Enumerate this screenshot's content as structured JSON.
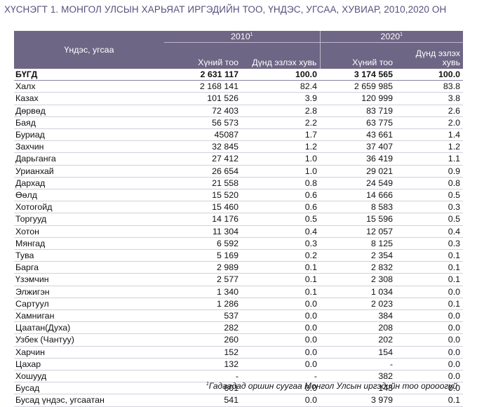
{
  "title": "ХҮСНЭГТ 1. МОНГОЛ УЛСЫН ХАРЬЯАТ ИРГЭДИЙН ТОО, ҮНДЭС, УГСАА, ХУВИАР, 2010,2020 ОН",
  "header": {
    "row_label": "Үндэс, угсаа",
    "year_2010": "2010",
    "year_2020": "2020",
    "sup": "1",
    "col_count": "Хүний тоо",
    "col_share": "Дүнд эзлэх хувь"
  },
  "rows": [
    {
      "name": "БҮГД",
      "p2010": "2 631 117",
      "s2010": "100.0",
      "p2020": "3 174 565",
      "s2020": "100.0"
    },
    {
      "name": "Халх",
      "p2010": "2 168 141",
      "s2010": "82.4",
      "p2020": "2 659 985",
      "s2020": "83.8"
    },
    {
      "name": "Казах",
      "p2010": "101 526",
      "s2010": "3.9",
      "p2020": "120 999",
      "s2020": "3.8"
    },
    {
      "name": "Дөрвөд",
      "p2010": "72 403",
      "s2010": "2.8",
      "p2020": "83 719",
      "s2020": "2.6"
    },
    {
      "name": "Баяд",
      "p2010": "56 573",
      "s2010": "2.2",
      "p2020": "63 775",
      "s2020": "2.0"
    },
    {
      "name": "Буриад",
      "p2010": "45087",
      "s2010": "1.7",
      "p2020": "43 661",
      "s2020": "1.4"
    },
    {
      "name": "Захчин",
      "p2010": "32 845",
      "s2010": "1.2",
      "p2020": "37 407",
      "s2020": "1.2"
    },
    {
      "name": "Дарьганга",
      "p2010": "27 412",
      "s2010": "1.0",
      "p2020": "36 419",
      "s2020": "1.1"
    },
    {
      "name": "Урианхай",
      "p2010": "26 654",
      "s2010": "1.0",
      "p2020": "29 021",
      "s2020": "0.9"
    },
    {
      "name": "Дархад",
      "p2010": "21 558",
      "s2010": "0.8",
      "p2020": "24 549",
      "s2020": "0.8"
    },
    {
      "name": "Өөлд",
      "p2010": "15 520",
      "s2010": "0.6",
      "p2020": "14 666",
      "s2020": "0.5"
    },
    {
      "name": "Хотогойд",
      "p2010": "15 460",
      "s2010": "0.6",
      "p2020": "8 583",
      "s2020": "0.3"
    },
    {
      "name": "Торгууд",
      "p2010": "14 176",
      "s2010": "0.5",
      "p2020": "15 596",
      "s2020": "0.5"
    },
    {
      "name": "Хотон",
      "p2010": "11 304",
      "s2010": "0.4",
      "p2020": "12 057",
      "s2020": "0.4"
    },
    {
      "name": "Мянгад",
      "p2010": "6 592",
      "s2010": "0.3",
      "p2020": "8 125",
      "s2020": "0.3"
    },
    {
      "name": "Тува",
      "p2010": "5 169",
      "s2010": "0.2",
      "p2020": "2 354",
      "s2020": "0.1"
    },
    {
      "name": "Барга",
      "p2010": "2 989",
      "s2010": "0.1",
      "p2020": "2 832",
      "s2020": "0.1"
    },
    {
      "name": "Үзэмчин",
      "p2010": "2 577",
      "s2010": "0.1",
      "p2020": "2 308",
      "s2020": "0.1"
    },
    {
      "name": "Элжигэн",
      "p2010": "1 340",
      "s2010": "0.1",
      "p2020": "1 034",
      "s2020": "0.0"
    },
    {
      "name": "Сартуул",
      "p2010": "1 286",
      "s2010": "0.0",
      "p2020": "2 023",
      "s2020": "0.1"
    },
    {
      "name": "Хамниган",
      "p2010": "537",
      "s2010": "0.0",
      "p2020": "384",
      "s2020": "0.0"
    },
    {
      "name": "Цаатан(Духа)",
      "p2010": "282",
      "s2010": "0.0",
      "p2020": "208",
      "s2020": "0.0"
    },
    {
      "name": "Узбек (Чантуу)",
      "p2010": "260",
      "s2010": "0.0",
      "p2020": "202",
      "s2020": "0.0"
    },
    {
      "name": "Харчин",
      "p2010": "152",
      "s2010": "0.0",
      "p2020": "154",
      "s2020": "0.0"
    },
    {
      "name": "Цахар",
      "p2010": "132",
      "s2010": "0.0",
      "p2020": "-",
      "s2020": "0.0"
    },
    {
      "name": "Хошууд",
      "p2010": "-",
      "s2010": "-",
      "p2020": "382",
      "s2020": "0.0"
    },
    {
      "name": "Бусад",
      "p2010": "601",
      "s2010": "0.0",
      "p2020": "143",
      "s2020": "0.0"
    },
    {
      "name": "Бусад үндэс, угсаатан",
      "p2010": "541",
      "s2010": "0.0",
      "p2020": "3 979",
      "s2020": "0.1"
    }
  ],
  "footnote": {
    "sup": "1",
    "text": "Гадаадад оршин суугаа Монгол Улсын иргэдийн тоо орооогүй"
  },
  "colors": {
    "header_bg": "#6e6685",
    "header_text": "#ffffff",
    "title_text": "#5a4f7e"
  }
}
